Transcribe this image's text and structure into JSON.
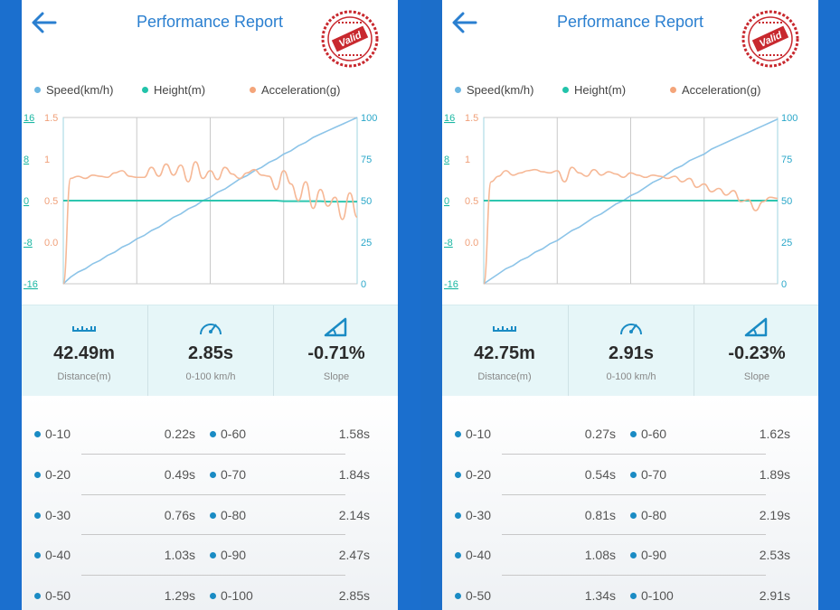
{
  "colors": {
    "speed": "#7cbde6",
    "height": "#35c9b3",
    "acceleration": "#f5b48e",
    "title": "#2a7fd0",
    "stamp": "#c8282e",
    "side_bar": "#1b6fce"
  },
  "panels": [
    {
      "header": {
        "title": "Performance Report",
        "back_icon": "arrow-left-icon",
        "stamp_text": "Valid"
      },
      "legend": [
        {
          "label": "Speed(km/h)",
          "color": "#6bb6e2"
        },
        {
          "label": "Height(m)",
          "color": "#22c3aa"
        },
        {
          "label": "Acceleration(g)",
          "color": "#f4a57a"
        }
      ],
      "chart_data": {
        "type": "line",
        "x": [
          0,
          1,
          2,
          3,
          4,
          5,
          6,
          7,
          8,
          9,
          10,
          11,
          12,
          13,
          14,
          15,
          16,
          17,
          18,
          19,
          20,
          21,
          22,
          23,
          24,
          25,
          26,
          27,
          28,
          29,
          30,
          31,
          32,
          33,
          34,
          35,
          36,
          37,
          38,
          39,
          40
        ],
        "left_axis_height_ticks": [
          "16",
          "8",
          "0",
          "-8",
          "-16"
        ],
        "left_axis_accel_ticks": [
          "1.5",
          "1",
          "0.5",
          "0.0"
        ],
        "right_axis_speed_ticks": [
          "100",
          "75",
          "50",
          "25",
          "0"
        ],
        "grid": true,
        "series": [
          {
            "name": "Speed(km/h)",
            "axis": "right",
            "ylim": [
              0,
              100
            ],
            "values": [
              0,
              4,
              7,
              9,
              12,
              14,
              17,
              19,
              22,
              24,
              27,
              29,
              32,
              34,
              37,
              40,
              42,
              45,
              47,
              50,
              52,
              55,
              57,
              60,
              63,
              65,
              68,
              70,
              73,
              75,
              78,
              80,
              83,
              85,
              88,
              90,
              92,
              94,
              96,
              98,
              100
            ]
          },
          {
            "name": "Height(m)",
            "axis": "left_height",
            "ylim": [
              -16,
              16
            ],
            "values": [
              0,
              0,
              0,
              0,
              0,
              0,
              0,
              0,
              0,
              0,
              0,
              0,
              0,
              0,
              0,
              0,
              0,
              0,
              0,
              0,
              0,
              0,
              0,
              0,
              0,
              0,
              0,
              0,
              0,
              0,
              -0.1,
              -0.1,
              -0.1,
              -0.1,
              -0.1,
              -0.1,
              -0.2,
              -0.2,
              -0.2,
              -0.2,
              -0.2
            ]
          },
          {
            "name": "Acceleration(g)",
            "axis": "left_accel",
            "ylim": [
              0,
              1.5
            ],
            "values": [
              0.0,
              0.95,
              0.97,
              0.95,
              0.98,
              0.97,
              0.96,
              1.0,
              1.02,
              0.97,
              0.96,
              0.96,
              1.05,
              0.97,
              1.08,
              0.98,
              1.07,
              0.92,
              1.1,
              0.95,
              1.02,
              0.94,
              1.05,
              0.99,
              0.95,
              1.0,
              1.03,
              0.98,
              0.97,
              0.85,
              1.02,
              0.9,
              0.75,
              0.92,
              0.68,
              0.85,
              0.7,
              0.78,
              0.58,
              0.82,
              0.6
            ]
          }
        ]
      },
      "stats": [
        {
          "icon": "ruler-icon",
          "value": "42.49m",
          "label": "Distance(m)"
        },
        {
          "icon": "speedometer-icon",
          "value": "2.85s",
          "label": "0-100 km/h"
        },
        {
          "icon": "slope-icon",
          "value": "-0.71%",
          "label": "Slope"
        }
      ],
      "times": [
        {
          "left_label": "0-10",
          "left_value": "0.22s",
          "right_label": "0-60",
          "right_value": "1.58s"
        },
        {
          "left_label": "0-20",
          "left_value": "0.49s",
          "right_label": "0-70",
          "right_value": "1.84s"
        },
        {
          "left_label": "0-30",
          "left_value": "0.76s",
          "right_label": "0-80",
          "right_value": "2.14s"
        },
        {
          "left_label": "0-40",
          "left_value": "1.03s",
          "right_label": "0-90",
          "right_value": "2.47s"
        },
        {
          "left_label": "0-50",
          "left_value": "1.29s",
          "right_label": "0-100",
          "right_value": "2.85s"
        }
      ]
    },
    {
      "header": {
        "title": "Performance Report",
        "back_icon": "arrow-left-icon",
        "stamp_text": "Valid"
      },
      "legend": [
        {
          "label": "Speed(km/h)",
          "color": "#6bb6e2"
        },
        {
          "label": "Height(m)",
          "color": "#22c3aa"
        },
        {
          "label": "Acceleration(g)",
          "color": "#f4a57a"
        }
      ],
      "chart_data": {
        "type": "line",
        "x": [
          0,
          1,
          2,
          3,
          4,
          5,
          6,
          7,
          8,
          9,
          10,
          11,
          12,
          13,
          14,
          15,
          16,
          17,
          18,
          19,
          20,
          21,
          22,
          23,
          24,
          25,
          26,
          27,
          28,
          29,
          30,
          31,
          32,
          33,
          34,
          35,
          36,
          37,
          38,
          39,
          40
        ],
        "left_axis_height_ticks": [
          "16",
          "8",
          "0",
          "-8",
          "-16"
        ],
        "left_axis_accel_ticks": [
          "1.5",
          "1",
          "0.5",
          "0.0"
        ],
        "right_axis_speed_ticks": [
          "100",
          "75",
          "50",
          "25",
          "0"
        ],
        "grid": true,
        "series": [
          {
            "name": "Speed(km/h)",
            "axis": "right",
            "ylim": [
              0,
              100
            ],
            "values": [
              0,
              3,
              6,
              9,
              11,
              14,
              16,
              19,
              21,
              24,
              26,
              29,
              32,
              34,
              37,
              40,
              42,
              45,
              48,
              50,
              53,
              55,
              58,
              61,
              63,
              66,
              69,
              71,
              74,
              76,
              78,
              81,
              83,
              85,
              87,
              89,
              91,
              93,
              95,
              97,
              99
            ]
          },
          {
            "name": "Height(m)",
            "axis": "left_height",
            "ylim": [
              -16,
              16
            ],
            "values": [
              0,
              0,
              0,
              0,
              0,
              0,
              0,
              0,
              0,
              0,
              0,
              0,
              0,
              0,
              0,
              0,
              0,
              0,
              0,
              0,
              0,
              0,
              0,
              0,
              0,
              0,
              0,
              0,
              0,
              0,
              0,
              0,
              0,
              0,
              0,
              0,
              0,
              0,
              0,
              0,
              0
            ]
          },
          {
            "name": "Acceleration(g)",
            "axis": "left_accel",
            "ylim": [
              0,
              1.5
            ],
            "values": [
              0.0,
              0.92,
              0.97,
              1.02,
              0.98,
              1.0,
              1.02,
              1.03,
              1.01,
              1.0,
              1.02,
              0.92,
              1.05,
              1.0,
              0.97,
              1.03,
              0.98,
              1.01,
              0.99,
              0.96,
              1.0,
              0.98,
              0.96,
              0.98,
              0.97,
              0.95,
              0.97,
              0.92,
              0.95,
              0.87,
              0.9,
              0.83,
              0.86,
              0.8,
              0.84,
              0.74,
              0.76,
              0.66,
              0.74,
              0.78,
              0.77
            ]
          }
        ]
      },
      "stats": [
        {
          "icon": "ruler-icon",
          "value": "42.75m",
          "label": "Distance(m)"
        },
        {
          "icon": "speedometer-icon",
          "value": "2.91s",
          "label": "0-100 km/h"
        },
        {
          "icon": "slope-icon",
          "value": "-0.23%",
          "label": "Slope"
        }
      ],
      "times": [
        {
          "left_label": "0-10",
          "left_value": "0.27s",
          "right_label": "0-60",
          "right_value": "1.62s"
        },
        {
          "left_label": "0-20",
          "left_value": "0.54s",
          "right_label": "0-70",
          "right_value": "1.89s"
        },
        {
          "left_label": "0-30",
          "left_value": "0.81s",
          "right_label": "0-80",
          "right_value": "2.19s"
        },
        {
          "left_label": "0-40",
          "left_value": "1.08s",
          "right_label": "0-90",
          "right_value": "2.53s"
        },
        {
          "left_label": "0-50",
          "left_value": "1.34s",
          "right_label": "0-100",
          "right_value": "2.91s"
        }
      ]
    }
  ]
}
